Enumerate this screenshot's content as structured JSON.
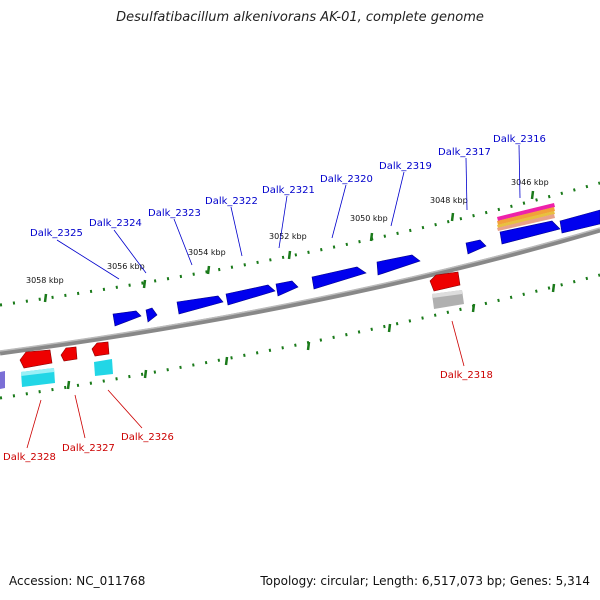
{
  "title": "Desulfatibacillum alkenivorans AK-01, complete genome",
  "footer": {
    "accession": "Accession: NC_011768",
    "summary": "Topology: circular; Length: 6,517,073 bp; Genes: 5,314"
  },
  "colors": {
    "forward_gene": "#0000ee",
    "reverse_gene": "#ee0000",
    "forward_label": "#0000cc",
    "reverse_label": "#cc0000",
    "backbone": "#777777",
    "tick": "#1a7a1a",
    "cyan_feature": "#22d6e6",
    "gray_feature": "#bbbbbb"
  },
  "kbp_labels": [
    "3046 kbp",
    "3048 kbp",
    "3050 kbp",
    "3052 kbp",
    "3054 kbp",
    "3056 kbp",
    "3058 kbp"
  ],
  "forward_genes": [
    "Dalk_2316",
    "Dalk_2317",
    "Dalk_2319",
    "Dalk_2320",
    "Dalk_2321",
    "Dalk_2322",
    "Dalk_2323",
    "Dalk_2324",
    "Dalk_2325"
  ],
  "reverse_genes": [
    "Dalk_2318",
    "Dalk_2326",
    "Dalk_2327",
    "Dalk_2328"
  ]
}
